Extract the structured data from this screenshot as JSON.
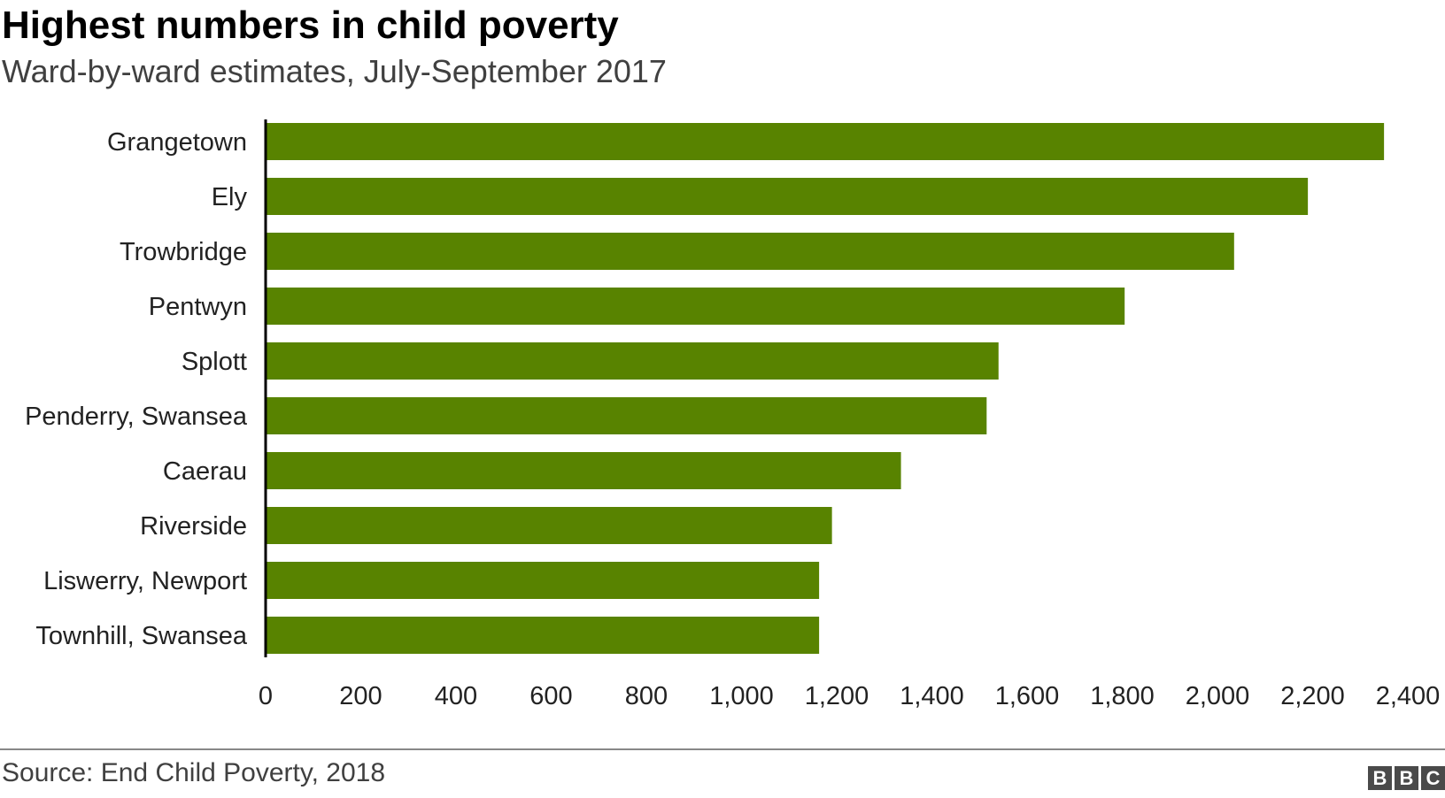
{
  "title": "Highest numbers in child poverty",
  "subtitle": "Ward-by-ward estimates, July-September 2017",
  "source": "Source: End Child Poverty, 2018",
  "logo_letters": [
    "B",
    "B",
    "C"
  ],
  "colors": {
    "bar": "#588300",
    "axis": "#000000",
    "text": "#222222"
  },
  "chart_data": {
    "type": "bar",
    "orientation": "horizontal",
    "categories": [
      "Grangetown",
      "Ely",
      "Trowbridge",
      "Pentwyn",
      "Splott",
      "Penderry, Swansea",
      "Caerau",
      "Riverside",
      "Liswerry, Newport",
      "Townhill, Swansea"
    ],
    "values": [
      2350,
      2190,
      2035,
      1805,
      1540,
      1515,
      1335,
      1190,
      1163,
      1163
    ],
    "xlim": [
      0,
      2400
    ],
    "xticks": [
      0,
      200,
      400,
      600,
      800,
      1000,
      1200,
      1400,
      1600,
      1800,
      2000,
      2200,
      2400
    ],
    "xtick_labels": [
      "0",
      "200",
      "400",
      "600",
      "800",
      "1,000",
      "1,200",
      "1,400",
      "1,600",
      "1,800",
      "2,000",
      "2,200",
      "2,400"
    ],
    "grid": false
  }
}
